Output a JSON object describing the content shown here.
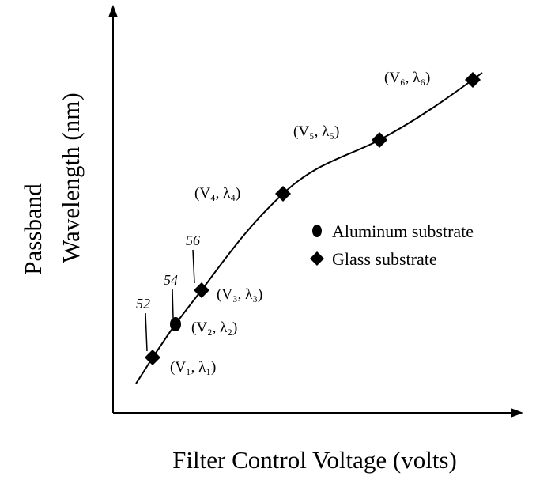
{
  "axes": {
    "y_label": [
      "Passband",
      "Wavelength (nm)"
    ],
    "x_label": "Filter Control Voltage (volts)"
  },
  "points": [
    {
      "label": "(V₁, λ₁)"
    },
    {
      "label": "(V₂, λ₂)"
    },
    {
      "label": "(V₃, λ₃)"
    },
    {
      "label": "(V₄, λ₄)"
    },
    {
      "label": "(V₅, λ₅)"
    },
    {
      "label": "(V₆, λ₆)"
    }
  ],
  "legend": [
    "Aluminum substrate",
    "Glass substrate"
  ],
  "reference_numerals": [
    "52",
    "54",
    "56"
  ]
}
